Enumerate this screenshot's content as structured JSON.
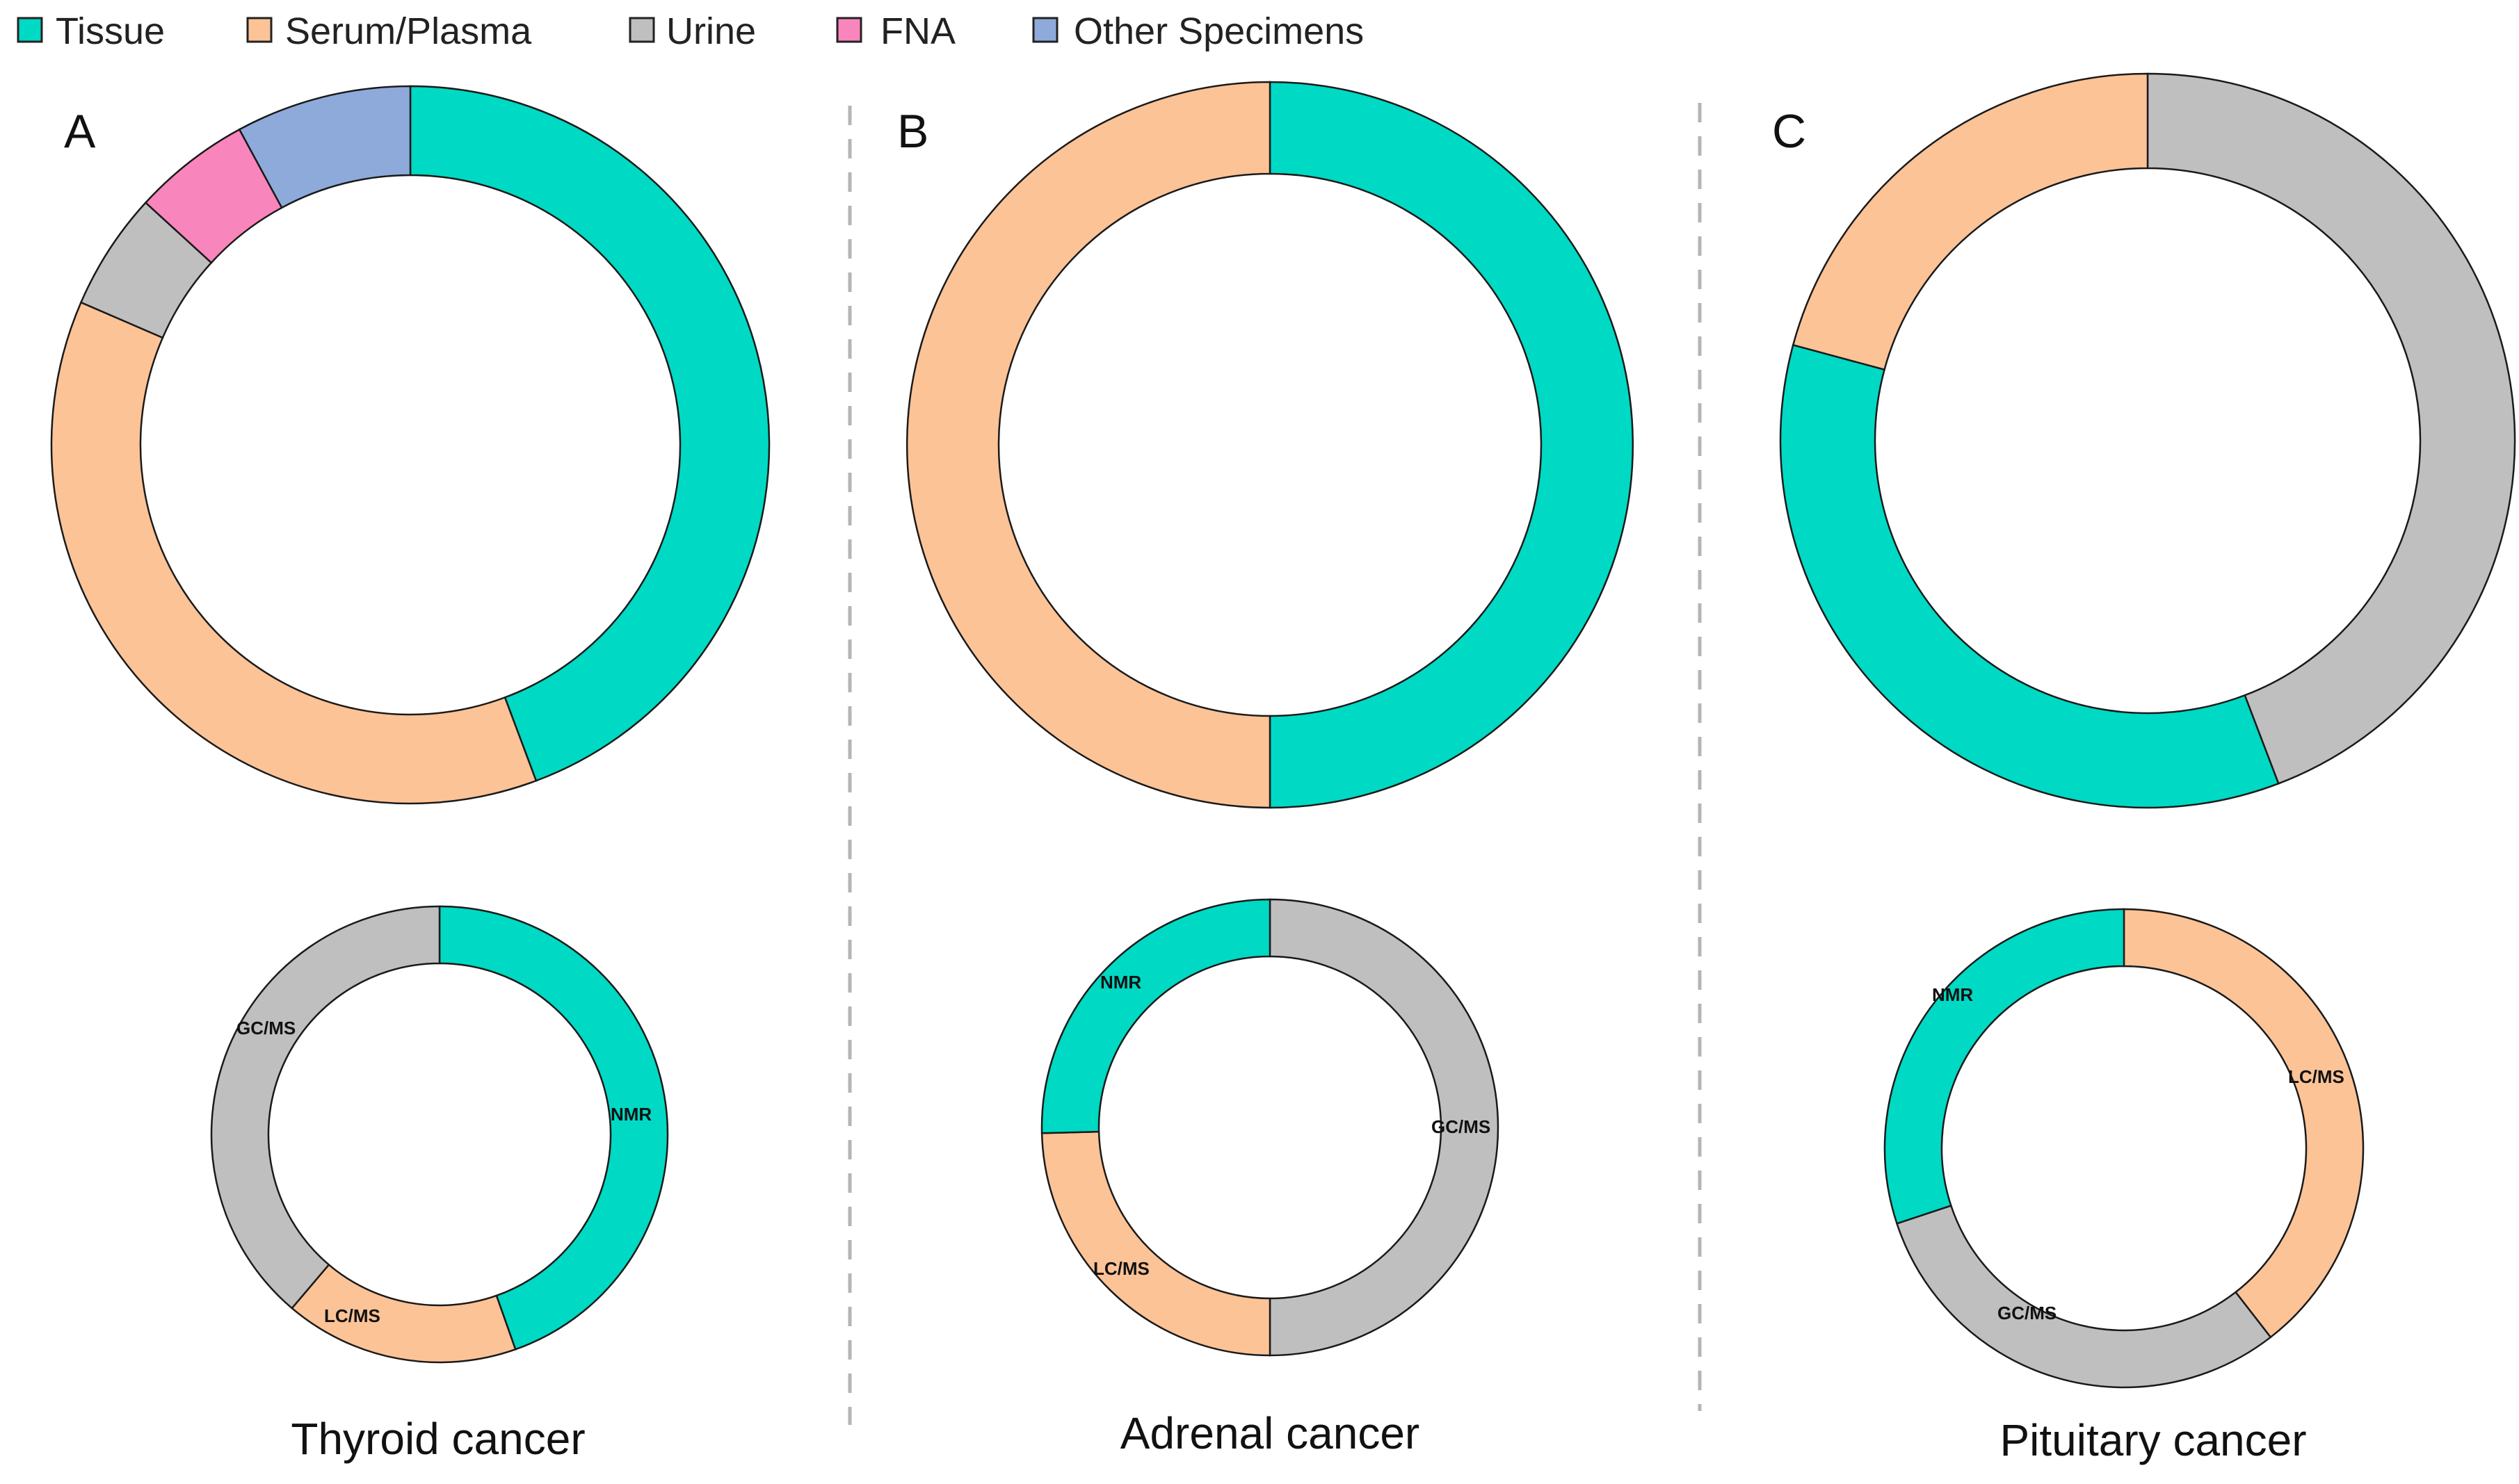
{
  "colors": {
    "Tissue": "#00d9c3",
    "Serum/Plasma": "#fcc397",
    "Urine": "#bfbfbf",
    "FNA": "#f985bd",
    "Other Specimens": "#8eaadb",
    "NMR": "#00d9c3",
    "LC/MS": "#fcc397",
    "GC/MS": "#bfbfbf"
  },
  "legend": {
    "items": [
      {
        "label": "Tissue",
        "color": "#00d9c3"
      },
      {
        "label": "Serum/Plasma",
        "color": "#fcc397"
      },
      {
        "label": "Urine",
        "color": "#bfbfbf"
      },
      {
        "label": "FNA",
        "color": "#f985bd"
      },
      {
        "label": "Other Specimens",
        "color": "#8eaadb"
      }
    ]
  },
  "panels": [
    {
      "letter": "A",
      "caption": "Thyroid cancer"
    },
    {
      "letter": "B",
      "caption": "Adrenal cancer"
    },
    {
      "letter": "C",
      "caption": "Pituitary cancer"
    }
  ],
  "chart_data": [
    {
      "type": "pie",
      "variant": "donut",
      "panel": "A",
      "title": "Thyroid cancer",
      "measure": "specimen type",
      "categories": [
        "Tissue",
        "Serum/Plasma",
        "Urine",
        "FNA",
        "Other Specimens"
      ],
      "values": [
        44.3,
        37.2,
        5.3,
        5.3,
        7.9
      ]
    },
    {
      "type": "pie",
      "variant": "donut",
      "panel": "A",
      "title": "Thyroid cancer",
      "measure": "analytical platform",
      "categories": [
        "NMR",
        "LC/MS",
        "GC/MS"
      ],
      "values": [
        44.6,
        16.6,
        38.8
      ]
    },
    {
      "type": "pie",
      "variant": "donut",
      "panel": "B",
      "title": "Adrenal cancer",
      "measure": "specimen type",
      "categories": [
        "Tissue",
        "Serum/Plasma"
      ],
      "values": [
        50,
        50
      ]
    },
    {
      "type": "pie",
      "variant": "donut",
      "panel": "B",
      "title": "Adrenal cancer",
      "measure": "analytical platform",
      "categories": [
        "GC/MS",
        "LC/MS",
        "NMR"
      ],
      "values": [
        50,
        24.6,
        25.4
      ]
    },
    {
      "type": "pie",
      "variant": "donut",
      "panel": "C",
      "title": "Pituitary cancer",
      "measure": "specimen type",
      "categories": [
        "Urine",
        "Tissue",
        "Serum/Plasma"
      ],
      "values": [
        44.2,
        35.0,
        20.8
      ]
    },
    {
      "type": "pie",
      "variant": "donut",
      "panel": "C",
      "title": "Pituitary cancer",
      "measure": "analytical platform",
      "categories": [
        "LC/MS",
        "GC/MS",
        "NMR"
      ],
      "values": [
        39.5,
        30.4,
        30.1
      ]
    }
  ]
}
